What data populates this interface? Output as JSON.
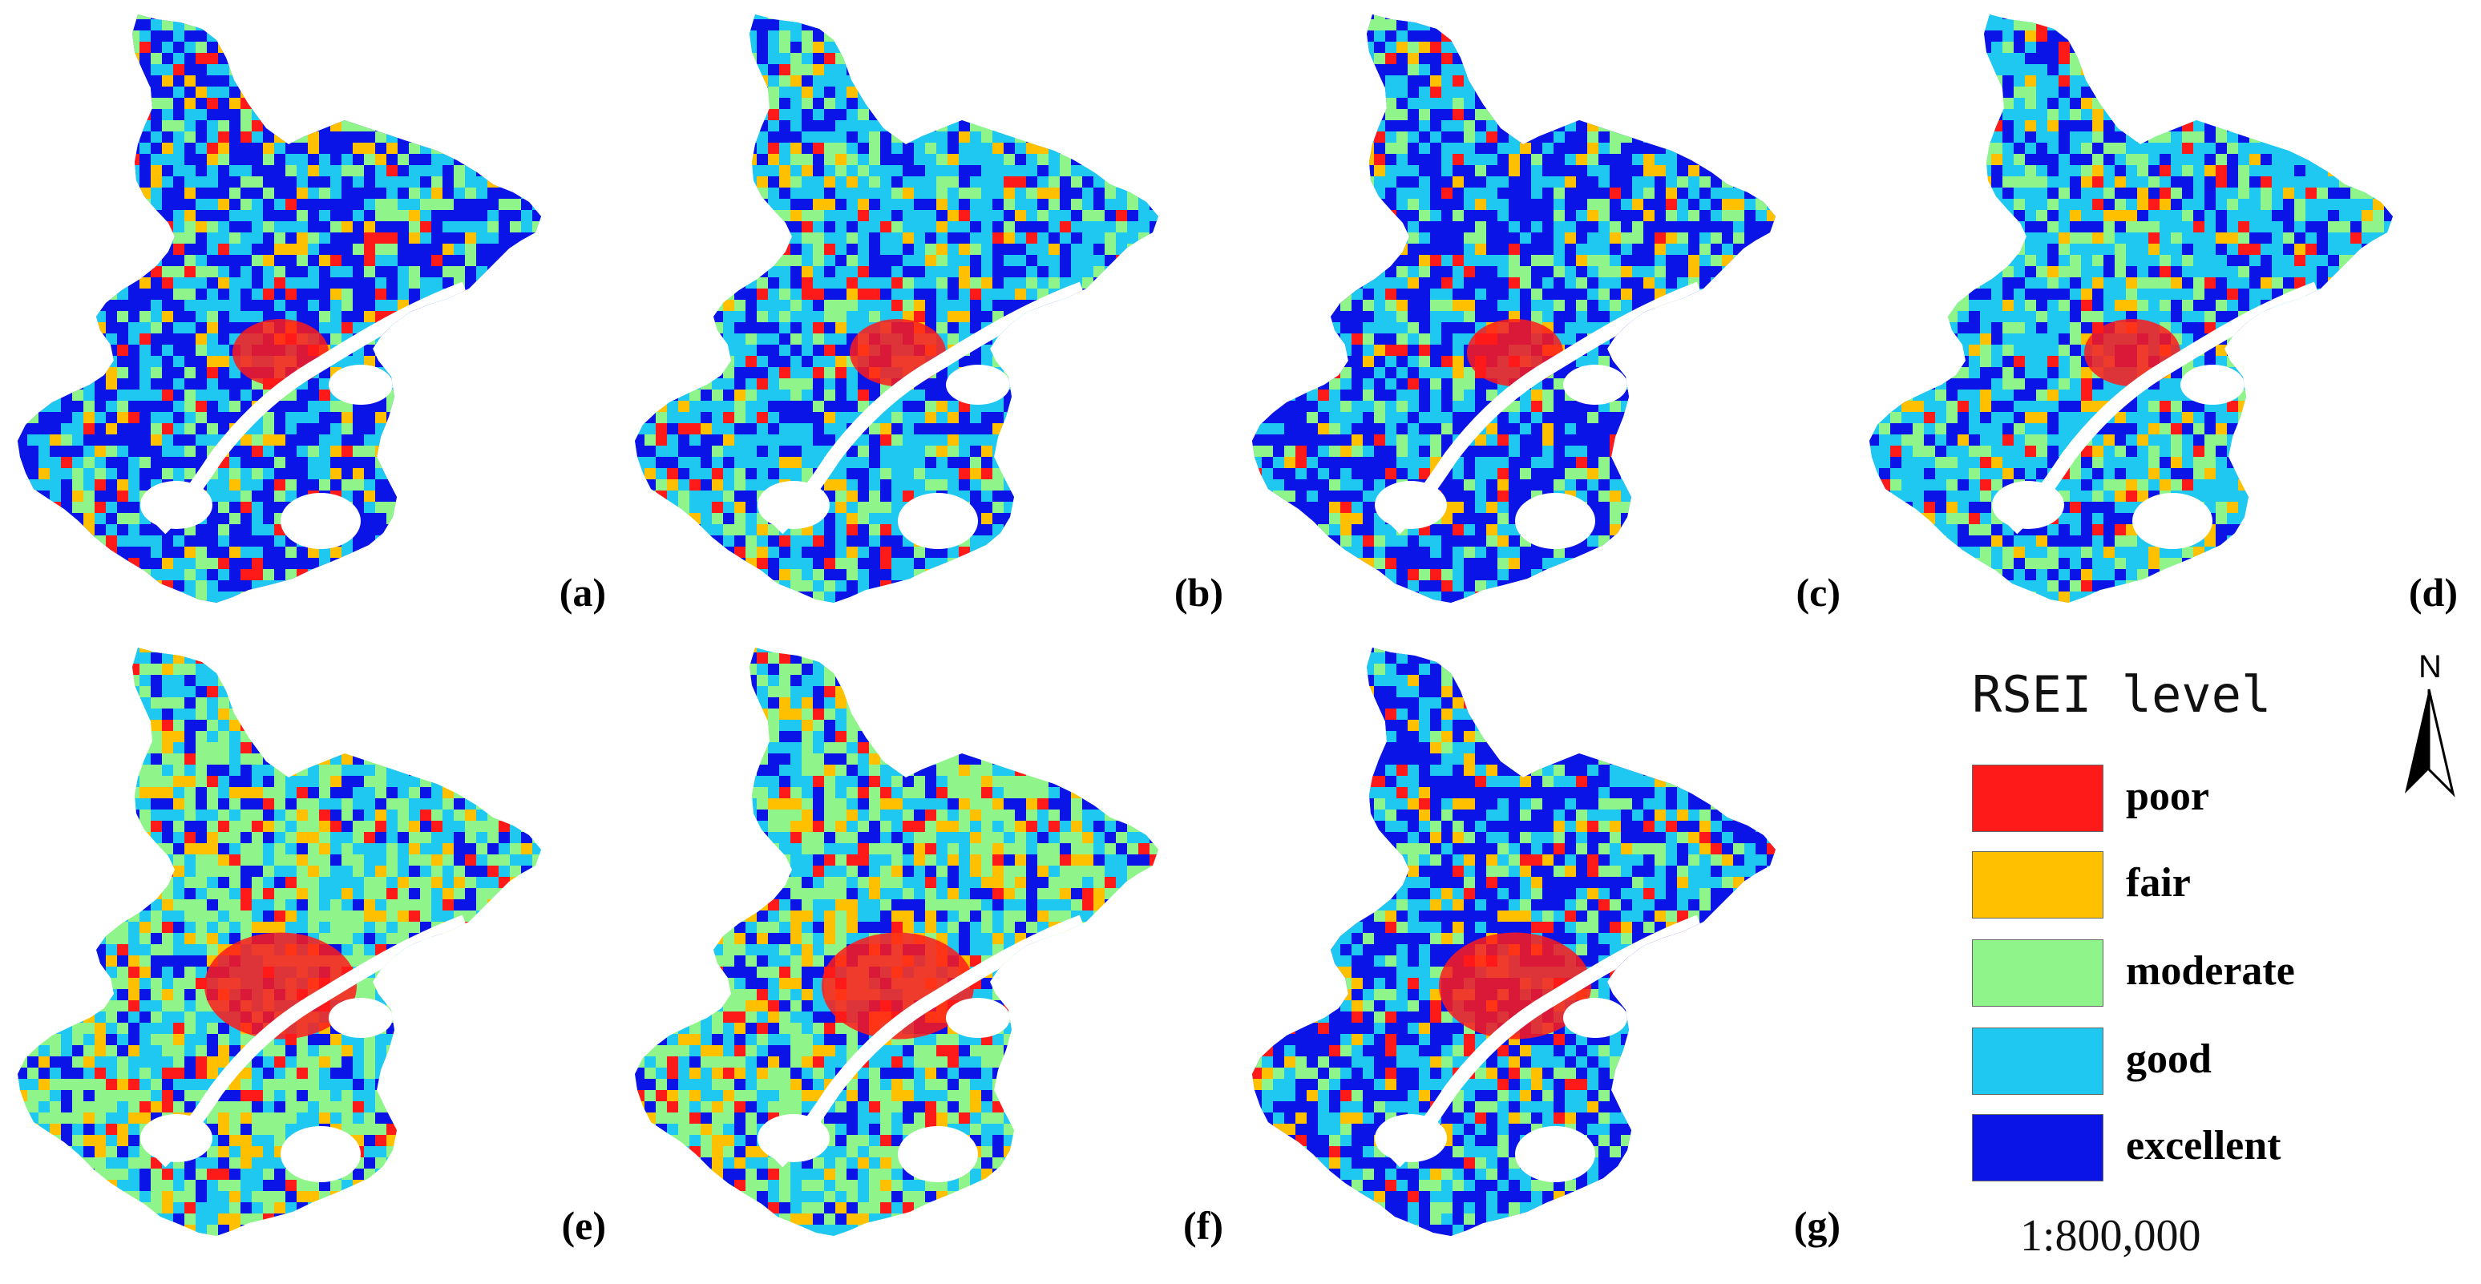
{
  "panels": [
    {
      "id": "a",
      "label": "(a)",
      "dominant": "excellent"
    },
    {
      "id": "b",
      "label": "(b)",
      "dominant": "good"
    },
    {
      "id": "c",
      "label": "(c)",
      "dominant": "excellent"
    },
    {
      "id": "d",
      "label": "(d)",
      "dominant": "good"
    },
    {
      "id": "e",
      "label": "(e)",
      "dominant": "moderate"
    },
    {
      "id": "f",
      "label": "(f)",
      "dominant": "moderate"
    },
    {
      "id": "g",
      "label": "(g)",
      "dominant": "excellent"
    }
  ],
  "legend": {
    "title": "RSEI level",
    "items": [
      {
        "label": "poor",
        "color": "#ff1a1a"
      },
      {
        "label": "fair",
        "color": "#ffc000"
      },
      {
        "label": "moderate",
        "color": "#8ff58a"
      },
      {
        "label": "good",
        "color": "#1ec8f0"
      },
      {
        "label": "excellent",
        "color": "#0a14e6"
      }
    ]
  },
  "scale": "1:800,000",
  "north_label": "N",
  "colors": {
    "river": "#ffffff",
    "urban_core": "#ff1a1a",
    "excellent": "#0a14e6",
    "good": "#1ec8f0",
    "moderate": "#8ff58a",
    "fair": "#ffc000"
  }
}
